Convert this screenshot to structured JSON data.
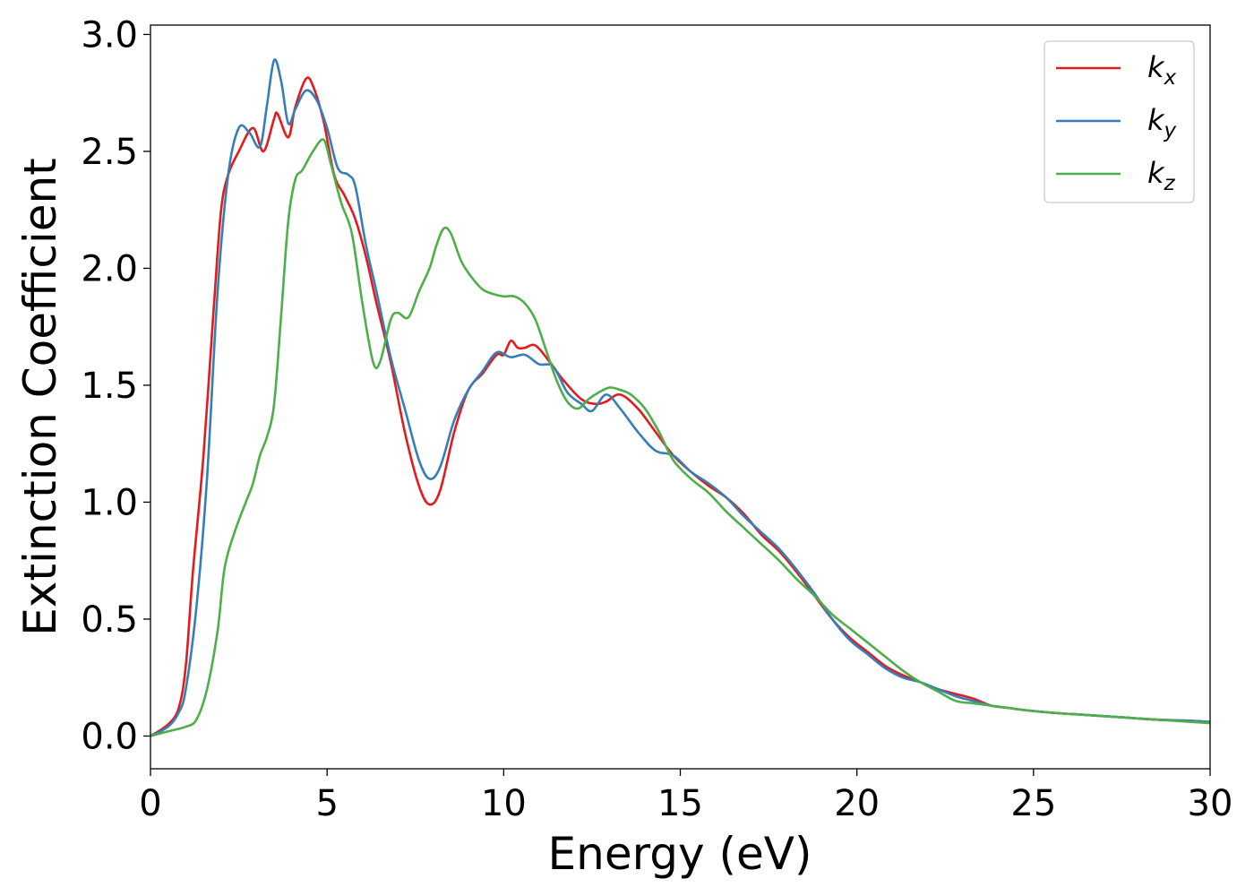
{
  "chart_data": {
    "type": "line",
    "title": "",
    "xlabel": "Energy (eV)",
    "ylabel": "Extinction Coefficient",
    "xlim": [
      0,
      30
    ],
    "ylim": [
      -0.14,
      3.04
    ],
    "xticks": [
      0,
      5,
      10,
      15,
      20,
      25,
      30
    ],
    "xtick_labels": [
      "0",
      "5",
      "10",
      "15",
      "20",
      "25",
      "30"
    ],
    "yticks": [
      0.0,
      0.5,
      1.0,
      1.5,
      2.0,
      2.5,
      3.0
    ],
    "ytick_labels": [
      "0.0",
      "0.5",
      "1.0",
      "1.5",
      "2.0",
      "2.5",
      "3.0"
    ],
    "grid": false,
    "legend_position": "top-right",
    "series": [
      {
        "name": "k",
        "subscript": "x",
        "color": "#e41a1c",
        "x": [
          0,
          0.5,
          0.8,
          1.0,
          1.2,
          1.5,
          1.8,
          2.0,
          2.2,
          2.5,
          2.9,
          3.2,
          3.5,
          3.6,
          3.9,
          4.1,
          4.4,
          4.6,
          4.9,
          5.2,
          5.5,
          5.8,
          6.1,
          6.4,
          6.8,
          7.2,
          7.6,
          7.9,
          8.2,
          8.6,
          9.0,
          9.4,
          9.8,
          10.0,
          10.2,
          10.4,
          10.6,
          10.9,
          11.3,
          11.7,
          12.2,
          12.6,
          12.9,
          13.3,
          13.8,
          14.3,
          14.8,
          15.3,
          15.8,
          16.3,
          16.8,
          17.3,
          17.8,
          18.3,
          18.8,
          19.3,
          19.8,
          20.3,
          20.8,
          21.3,
          21.8,
          22.3,
          22.8,
          23.3,
          23.8,
          24.3,
          24.8,
          25.5,
          26.5,
          27.5,
          28.5,
          29.5,
          30.0
        ],
        "y": [
          0.0,
          0.05,
          0.12,
          0.3,
          0.7,
          1.2,
          1.85,
          2.25,
          2.4,
          2.5,
          2.6,
          2.5,
          2.64,
          2.66,
          2.56,
          2.69,
          2.81,
          2.78,
          2.63,
          2.4,
          2.31,
          2.21,
          2.05,
          1.85,
          1.6,
          1.3,
          1.07,
          0.99,
          1.05,
          1.3,
          1.48,
          1.55,
          1.63,
          1.63,
          1.69,
          1.66,
          1.66,
          1.67,
          1.6,
          1.52,
          1.44,
          1.42,
          1.43,
          1.46,
          1.4,
          1.3,
          1.2,
          1.13,
          1.07,
          1.02,
          0.95,
          0.86,
          0.79,
          0.7,
          0.6,
          0.5,
          0.42,
          0.36,
          0.3,
          0.26,
          0.23,
          0.2,
          0.18,
          0.16,
          0.13,
          0.12,
          0.11,
          0.1,
          0.09,
          0.08,
          0.07,
          0.065,
          0.06
        ]
      },
      {
        "name": "k",
        "subscript": "y",
        "color": "#377eb8",
        "x": [
          0,
          0.5,
          0.8,
          1.0,
          1.3,
          1.6,
          1.9,
          2.2,
          2.5,
          2.8,
          3.1,
          3.3,
          3.5,
          3.7,
          3.9,
          4.1,
          4.4,
          4.7,
          5.0,
          5.3,
          5.6,
          5.8,
          6.1,
          6.4,
          6.8,
          7.2,
          7.6,
          7.9,
          8.2,
          8.6,
          9.0,
          9.4,
          9.8,
          10.2,
          10.6,
          11.0,
          11.4,
          11.8,
          12.2,
          12.5,
          12.9,
          13.3,
          13.8,
          14.3,
          14.8,
          15.3,
          15.8,
          16.3,
          16.8,
          17.3,
          17.8,
          18.3,
          18.8,
          19.3,
          19.8,
          20.3,
          20.8,
          21.3,
          21.8,
          22.3,
          22.8,
          23.3,
          23.8,
          24.3,
          24.8,
          25.5,
          26.5,
          27.5,
          28.5,
          29.5,
          30.0
        ],
        "y": [
          0.0,
          0.04,
          0.1,
          0.2,
          0.55,
          1.1,
          1.9,
          2.4,
          2.6,
          2.58,
          2.52,
          2.7,
          2.89,
          2.8,
          2.62,
          2.68,
          2.76,
          2.72,
          2.6,
          2.43,
          2.4,
          2.35,
          2.1,
          1.9,
          1.62,
          1.4,
          1.18,
          1.1,
          1.15,
          1.35,
          1.48,
          1.56,
          1.64,
          1.62,
          1.63,
          1.59,
          1.58,
          1.47,
          1.42,
          1.39,
          1.46,
          1.4,
          1.3,
          1.22,
          1.2,
          1.13,
          1.08,
          1.02,
          0.94,
          0.87,
          0.8,
          0.71,
          0.61,
          0.5,
          0.41,
          0.35,
          0.29,
          0.25,
          0.23,
          0.2,
          0.17,
          0.15,
          0.13,
          0.12,
          0.11,
          0.1,
          0.09,
          0.08,
          0.07,
          0.065,
          0.06
        ]
      },
      {
        "name": "k",
        "subscript": "z",
        "color": "#4daf4a",
        "x": [
          0,
          0.5,
          1.0,
          1.3,
          1.6,
          1.9,
          2.1,
          2.4,
          2.7,
          2.9,
          3.1,
          3.3,
          3.5,
          3.7,
          3.9,
          4.1,
          4.3,
          4.6,
          4.9,
          5.1,
          5.4,
          5.7,
          6.0,
          6.3,
          6.5,
          6.8,
          7.0,
          7.3,
          7.6,
          7.9,
          8.1,
          8.3,
          8.5,
          8.8,
          9.1,
          9.4,
          9.7,
          10.0,
          10.3,
          10.6,
          10.9,
          11.2,
          11.5,
          11.8,
          12.1,
          12.4,
          12.7,
          13.0,
          13.3,
          13.6,
          14.0,
          14.4,
          14.8,
          15.3,
          15.8,
          16.3,
          16.8,
          17.3,
          17.8,
          18.3,
          18.8,
          19.3,
          19.8,
          20.3,
          20.8,
          21.3,
          21.8,
          22.3,
          22.8,
          23.3,
          23.8,
          24.3,
          24.8,
          25.5,
          26.5,
          27.5,
          28.5,
          29.5,
          30.0
        ],
        "y": [
          0.0,
          0.02,
          0.04,
          0.07,
          0.2,
          0.45,
          0.72,
          0.88,
          1.0,
          1.08,
          1.2,
          1.28,
          1.42,
          1.8,
          2.2,
          2.38,
          2.42,
          2.5,
          2.55,
          2.45,
          2.28,
          2.15,
          1.85,
          1.6,
          1.6,
          1.78,
          1.81,
          1.79,
          1.9,
          2.0,
          2.1,
          2.17,
          2.15,
          2.03,
          1.96,
          1.91,
          1.89,
          1.88,
          1.88,
          1.85,
          1.78,
          1.65,
          1.52,
          1.43,
          1.4,
          1.44,
          1.47,
          1.49,
          1.48,
          1.46,
          1.4,
          1.3,
          1.18,
          1.1,
          1.04,
          0.96,
          0.89,
          0.82,
          0.75,
          0.67,
          0.6,
          0.52,
          0.46,
          0.4,
          0.34,
          0.28,
          0.23,
          0.19,
          0.15,
          0.14,
          0.13,
          0.12,
          0.11,
          0.1,
          0.09,
          0.08,
          0.07,
          0.06,
          0.055
        ]
      }
    ]
  }
}
